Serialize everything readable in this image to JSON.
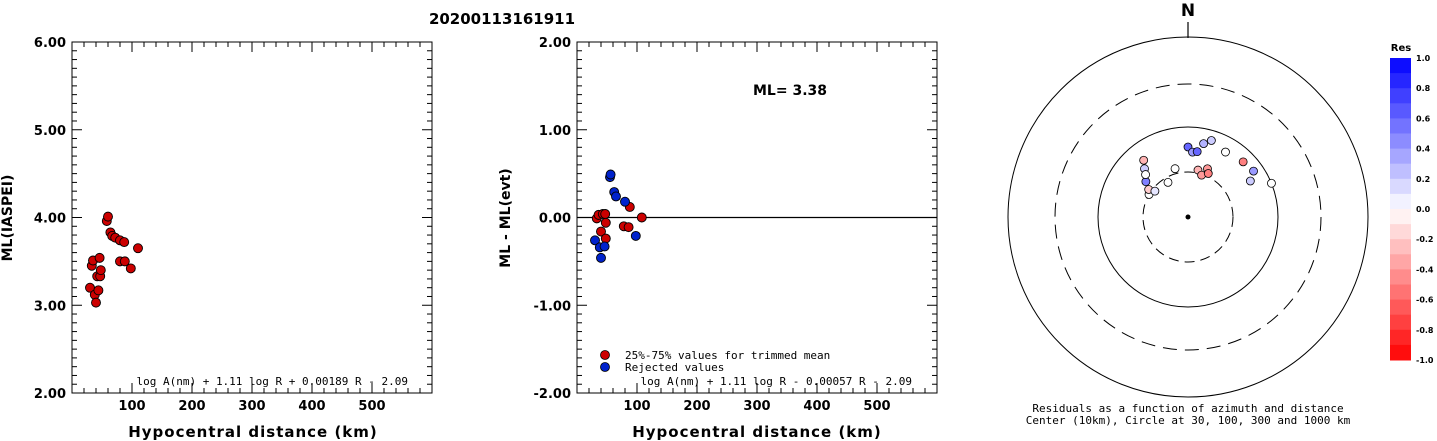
{
  "title": "20200113161911",
  "chart_data": [
    {
      "type": "scatter",
      "ylabel": "ML(IASPEI)",
      "xlabel": "Hypocentral distance (km)",
      "xlim": [
        0,
        600
      ],
      "ylim": [
        2.0,
        6.0
      ],
      "xticks": [
        "100",
        "200",
        "300",
        "400",
        "500"
      ],
      "yticks": [
        "2.00",
        "3.00",
        "4.00",
        "5.00",
        "6.00"
      ],
      "formula": "log A(nm) + 1.11 log R + 0.00189 R - 2.09",
      "series": [
        {
          "color": "#cc0000",
          "points": [
            [
              30,
              3.2
            ],
            [
              33,
              3.45
            ],
            [
              35,
              3.51
            ],
            [
              38,
              3.12
            ],
            [
              40,
              3.03
            ],
            [
              42,
              3.33
            ],
            [
              44,
              3.17
            ],
            [
              46,
              3.54
            ],
            [
              47,
              3.33
            ],
            [
              48,
              3.4
            ],
            [
              58,
              3.96
            ],
            [
              60,
              4.01
            ],
            [
              64,
              3.83
            ],
            [
              67,
              3.79
            ],
            [
              72,
              3.77
            ],
            [
              80,
              3.74
            ],
            [
              80,
              3.5
            ],
            [
              87,
              3.72
            ],
            [
              88,
              3.5
            ],
            [
              98,
              3.42
            ],
            [
              110,
              3.65
            ]
          ]
        }
      ]
    },
    {
      "type": "scatter",
      "ylabel": "ML - ML(evt)",
      "xlabel": "Hypocentral distance (km)",
      "xlim": [
        0,
        600
      ],
      "ylim": [
        -2.0,
        2.0
      ],
      "xticks": [
        "100",
        "200",
        "300",
        "400",
        "500"
      ],
      "yticks": [
        "-2.00",
        "-1.00",
        "0.00",
        "1.00",
        "2.00"
      ],
      "annotation": "ML= 3.38",
      "formula": "log A(nm) + 1.11 log R - 0.00057 R - 2.09",
      "legend": [
        {
          "label": "25%-75% values for trimmed mean",
          "color": "#cc0000"
        },
        {
          "label": "Rejected values",
          "color": "#0022cc"
        }
      ],
      "series": [
        {
          "name": "25%-75% values for trimmed mean",
          "color": "#cc0000",
          "points": [
            [
              33,
              -0.01
            ],
            [
              36,
              0.03
            ],
            [
              40,
              -0.16
            ],
            [
              43,
              0.04
            ],
            [
              47,
              0.04
            ],
            [
              48,
              -0.06
            ],
            [
              48,
              -0.24
            ],
            [
              78,
              -0.1
            ],
            [
              86,
              -0.11
            ],
            [
              88,
              0.12
            ],
            [
              108,
              0.0
            ]
          ]
        },
        {
          "name": "Rejected values",
          "color": "#0022cc",
          "points": [
            [
              30,
              -0.26
            ],
            [
              38,
              -0.34
            ],
            [
              40,
              -0.46
            ],
            [
              46,
              -0.33
            ],
            [
              55,
              0.46
            ],
            [
              56,
              0.49
            ],
            [
              62,
              0.29
            ],
            [
              65,
              0.24
            ],
            [
              80,
              0.18
            ],
            [
              98,
              -0.21
            ]
          ]
        }
      ]
    }
  ],
  "polar": {
    "north_label": "N",
    "caption_line1": "Residuals as a function of azimuth and distance",
    "caption_line2": "Center (10km), Circle at 30, 100, 300 and 1000 km",
    "stations": [
      {
        "az": -42,
        "dist": 65,
        "res": 0.2
      },
      {
        "az": -38,
        "dist": 72,
        "res": -0.3
      },
      {
        "az": -50,
        "dist": 55,
        "res": 0.5
      },
      {
        "az": -45,
        "dist": 60,
        "res": 0.0
      },
      {
        "az": -60,
        "dist": 45,
        "res": 0.0
      },
      {
        "az": -55,
        "dist": 48,
        "res": -0.2
      },
      {
        "az": -52,
        "dist": 42,
        "res": 0.1
      },
      {
        "az": -30,
        "dist": 40,
        "res": 0.0
      },
      {
        "az": -15,
        "dist": 50,
        "res": 0.0
      },
      {
        "az": 0,
        "dist": 70,
        "res": 0.6
      },
      {
        "az": 4,
        "dist": 65,
        "res": 0.4
      },
      {
        "az": 8,
        "dist": 66,
        "res": 0.6
      },
      {
        "az": 12,
        "dist": 48,
        "res": -0.3
      },
      {
        "az": 18,
        "dist": 44,
        "res": -0.4
      },
      {
        "az": 22,
        "dist": 52,
        "res": -0.4
      },
      {
        "az": 25,
        "dist": 48,
        "res": -0.5
      },
      {
        "az": 12,
        "dist": 75,
        "res": 0.3
      },
      {
        "az": 17,
        "dist": 80,
        "res": 0.2
      },
      {
        "az": 30,
        "dist": 75,
        "res": 0.0
      },
      {
        "az": 45,
        "dist": 78,
        "res": -0.5
      },
      {
        "az": 55,
        "dist": 80,
        "res": 0.4
      },
      {
        "az": 60,
        "dist": 72,
        "res": 0.2
      },
      {
        "az": 68,
        "dist": 90,
        "res": 0.0
      }
    ]
  },
  "colorbar": {
    "title": "Res",
    "ticks": [
      "1.0",
      "0.8",
      "0.6",
      "0.4",
      "0.2",
      "0.0",
      "-0.2",
      "-0.4",
      "-0.6",
      "-0.8",
      "-1.0"
    ]
  }
}
